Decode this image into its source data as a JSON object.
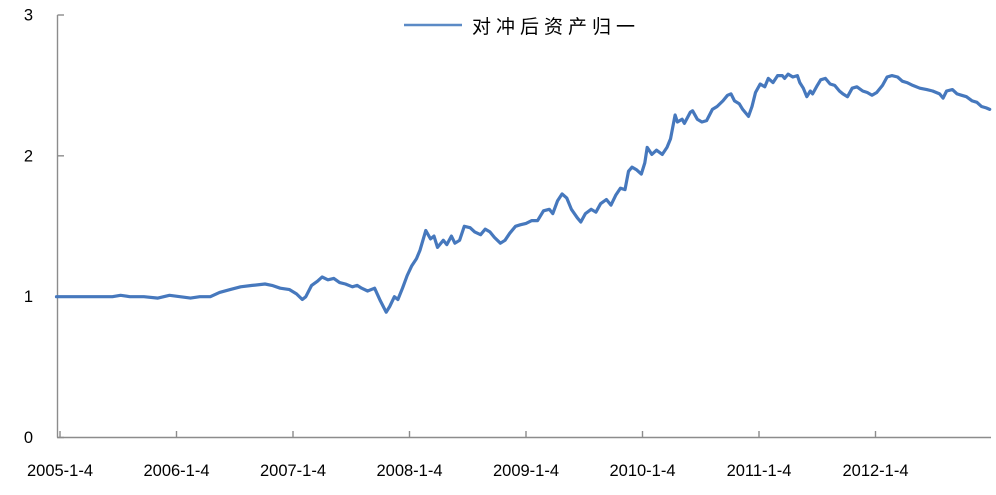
{
  "legend": {
    "label": "对冲后资产归一"
  },
  "colors": {
    "series": "#4678BD",
    "legend_swatch": "#5B8AC6",
    "axis": "#8C8C8C",
    "text": "#000000",
    "background": "#FFFFFF"
  },
  "chart_data": {
    "type": "line",
    "title": "",
    "series": [
      {
        "name": "对冲后资产归一"
      }
    ],
    "legend_position": "top-center",
    "grid": false,
    "xlabel": "",
    "ylabel": "",
    "ylim": [
      0,
      3
    ],
    "y_tick_values": [
      0,
      1,
      2,
      3
    ],
    "y_tick_labels": [
      "0",
      "1",
      "2",
      "3"
    ],
    "x_tick_years": [
      2005,
      2006,
      2007,
      2008,
      2009,
      2010,
      2011,
      2012
    ],
    "x_tick_labels": [
      "2005-1-4",
      "2006-1-4",
      "2007-1-4",
      "2008-1-4",
      "2009-1-4",
      "2010-1-4",
      "2011-1-4",
      "2012-1-4"
    ],
    "xlim_years": [
      2004.97,
      2013.0
    ],
    "points": [
      [
        2004.97,
        1.0
      ],
      [
        2005.1,
        1.0
      ],
      [
        2005.3,
        1.0
      ],
      [
        2005.45,
        1.0
      ],
      [
        2005.52,
        1.01
      ],
      [
        2005.6,
        1.0
      ],
      [
        2005.72,
        1.0
      ],
      [
        2005.84,
        0.99
      ],
      [
        2005.94,
        1.01
      ],
      [
        2006.03,
        1.0
      ],
      [
        2006.12,
        0.99
      ],
      [
        2006.2,
        1.0
      ],
      [
        2006.29,
        1.0
      ],
      [
        2006.37,
        1.03
      ],
      [
        2006.46,
        1.05
      ],
      [
        2006.55,
        1.07
      ],
      [
        2006.65,
        1.08
      ],
      [
        2006.76,
        1.09
      ],
      [
        2006.82,
        1.08
      ],
      [
        2006.89,
        1.06
      ],
      [
        2006.97,
        1.05
      ],
      [
        2007.03,
        1.02
      ],
      [
        2007.08,
        0.98
      ],
      [
        2007.11,
        1.0
      ],
      [
        2007.16,
        1.08
      ],
      [
        2007.21,
        1.11
      ],
      [
        2007.25,
        1.14
      ],
      [
        2007.3,
        1.12
      ],
      [
        2007.35,
        1.13
      ],
      [
        2007.4,
        1.1
      ],
      [
        2007.45,
        1.09
      ],
      [
        2007.51,
        1.07
      ],
      [
        2007.55,
        1.08
      ],
      [
        2007.59,
        1.06
      ],
      [
        2007.64,
        1.04
      ],
      [
        2007.7,
        1.06
      ],
      [
        2007.75,
        0.97
      ],
      [
        2007.8,
        0.89
      ],
      [
        2007.83,
        0.93
      ],
      [
        2007.87,
        1.0
      ],
      [
        2007.9,
        0.98
      ],
      [
        2007.94,
        1.06
      ],
      [
        2007.98,
        1.15
      ],
      [
        2008.02,
        1.22
      ],
      [
        2008.06,
        1.27
      ],
      [
        2008.09,
        1.33
      ],
      [
        2008.14,
        1.47
      ],
      [
        2008.18,
        1.41
      ],
      [
        2008.21,
        1.43
      ],
      [
        2008.24,
        1.35
      ],
      [
        2008.29,
        1.4
      ],
      [
        2008.32,
        1.37
      ],
      [
        2008.36,
        1.43
      ],
      [
        2008.39,
        1.38
      ],
      [
        2008.43,
        1.4
      ],
      [
        2008.47,
        1.5
      ],
      [
        2008.52,
        1.49
      ],
      [
        2008.56,
        1.46
      ],
      [
        2008.61,
        1.44
      ],
      [
        2008.65,
        1.48
      ],
      [
        2008.69,
        1.46
      ],
      [
        2008.73,
        1.42
      ],
      [
        2008.78,
        1.38
      ],
      [
        2008.82,
        1.4
      ],
      [
        2008.86,
        1.45
      ],
      [
        2008.91,
        1.5
      ],
      [
        2008.95,
        1.51
      ],
      [
        2009.0,
        1.52
      ],
      [
        2009.05,
        1.54
      ],
      [
        2009.1,
        1.54
      ],
      [
        2009.15,
        1.61
      ],
      [
        2009.2,
        1.62
      ],
      [
        2009.23,
        1.59
      ],
      [
        2009.27,
        1.68
      ],
      [
        2009.31,
        1.73
      ],
      [
        2009.35,
        1.7
      ],
      [
        2009.39,
        1.62
      ],
      [
        2009.44,
        1.56
      ],
      [
        2009.47,
        1.53
      ],
      [
        2009.51,
        1.59
      ],
      [
        2009.56,
        1.62
      ],
      [
        2009.6,
        1.6
      ],
      [
        2009.64,
        1.66
      ],
      [
        2009.69,
        1.69
      ],
      [
        2009.73,
        1.65
      ],
      [
        2009.77,
        1.72
      ],
      [
        2009.81,
        1.77
      ],
      [
        2009.85,
        1.76
      ],
      [
        2009.88,
        1.89
      ],
      [
        2009.91,
        1.92
      ],
      [
        2009.95,
        1.9
      ],
      [
        2009.99,
        1.87
      ],
      [
        2010.02,
        1.95
      ],
      [
        2010.04,
        2.06
      ],
      [
        2010.08,
        2.01
      ],
      [
        2010.12,
        2.04
      ],
      [
        2010.17,
        2.01
      ],
      [
        2010.21,
        2.06
      ],
      [
        2010.24,
        2.12
      ],
      [
        2010.28,
        2.29
      ],
      [
        2010.3,
        2.24
      ],
      [
        2010.34,
        2.26
      ],
      [
        2010.36,
        2.23
      ],
      [
        2010.41,
        2.31
      ],
      [
        2010.43,
        2.32
      ],
      [
        2010.47,
        2.26
      ],
      [
        2010.51,
        2.24
      ],
      [
        2010.55,
        2.25
      ],
      [
        2010.6,
        2.33
      ],
      [
        2010.64,
        2.35
      ],
      [
        2010.69,
        2.39
      ],
      [
        2010.73,
        2.43
      ],
      [
        2010.76,
        2.44
      ],
      [
        2010.79,
        2.39
      ],
      [
        2010.83,
        2.37
      ],
      [
        2010.86,
        2.33
      ],
      [
        2010.91,
        2.28
      ],
      [
        2010.94,
        2.35
      ],
      [
        2010.97,
        2.45
      ],
      [
        2011.01,
        2.51
      ],
      [
        2011.05,
        2.49
      ],
      [
        2011.08,
        2.55
      ],
      [
        2011.12,
        2.52
      ],
      [
        2011.16,
        2.57
      ],
      [
        2011.2,
        2.57
      ],
      [
        2011.22,
        2.55
      ],
      [
        2011.25,
        2.58
      ],
      [
        2011.29,
        2.56
      ],
      [
        2011.33,
        2.57
      ],
      [
        2011.35,
        2.52
      ],
      [
        2011.38,
        2.48
      ],
      [
        2011.41,
        2.42
      ],
      [
        2011.44,
        2.46
      ],
      [
        2011.46,
        2.44
      ],
      [
        2011.5,
        2.5
      ],
      [
        2011.53,
        2.54
      ],
      [
        2011.57,
        2.55
      ],
      [
        2011.61,
        2.51
      ],
      [
        2011.65,
        2.5
      ],
      [
        2011.69,
        2.46
      ],
      [
        2011.72,
        2.44
      ],
      [
        2011.76,
        2.42
      ],
      [
        2011.8,
        2.48
      ],
      [
        2011.84,
        2.49
      ],
      [
        2011.89,
        2.46
      ],
      [
        2011.93,
        2.45
      ],
      [
        2011.97,
        2.43
      ],
      [
        2012.01,
        2.45
      ],
      [
        2012.06,
        2.5
      ],
      [
        2012.1,
        2.56
      ],
      [
        2012.14,
        2.57
      ],
      [
        2012.19,
        2.56
      ],
      [
        2012.23,
        2.53
      ],
      [
        2012.27,
        2.52
      ],
      [
        2012.32,
        2.5
      ],
      [
        2012.38,
        2.48
      ],
      [
        2012.44,
        2.47
      ],
      [
        2012.49,
        2.46
      ],
      [
        2012.55,
        2.44
      ],
      [
        2012.58,
        2.41
      ],
      [
        2012.61,
        2.46
      ],
      [
        2012.66,
        2.47
      ],
      [
        2012.7,
        2.44
      ],
      [
        2012.74,
        2.43
      ],
      [
        2012.78,
        2.42
      ],
      [
        2012.83,
        2.39
      ],
      [
        2012.87,
        2.38
      ],
      [
        2012.91,
        2.35
      ],
      [
        2012.95,
        2.34
      ],
      [
        2012.98,
        2.33
      ]
    ]
  }
}
